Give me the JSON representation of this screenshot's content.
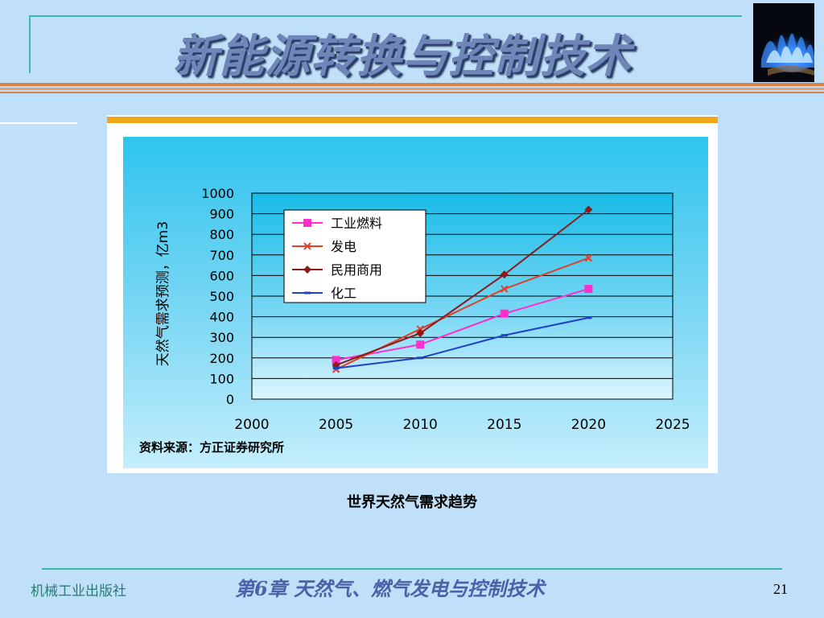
{
  "slide": {
    "title": "新能源转换与控制技术",
    "caption": "世界天然气需求趋势",
    "footer": {
      "publisher": "机械工业出版社",
      "chapter": "第6章  天然气、燃气发电与控制技术",
      "page_number": "21"
    }
  },
  "colors": {
    "background": "#bfe0f8",
    "title_fill": "#6f86b8",
    "title_shadow": "#2a3f6e",
    "accent_teal": "#3cb8a8",
    "accent_orange": "#d8814a",
    "chart_top_bar": "#f0a818"
  },
  "chart_data": {
    "type": "line",
    "ylabel": "天然气需求预测，亿m3",
    "source_note": "资料来源：方正证券研究所",
    "x_ticks": [
      "2000",
      "2005",
      "2010",
      "2015",
      "2020",
      "2025"
    ],
    "y_ticks": [
      "0",
      "100",
      "200",
      "300",
      "400",
      "500",
      "600",
      "700",
      "800",
      "900",
      "1000"
    ],
    "xlim": [
      2000,
      2025
    ],
    "ylim": [
      0,
      1000
    ],
    "grid": "horizontal",
    "legend_position": "top-left",
    "series": [
      {
        "name": "工业燃料",
        "color": "#ff2fcf",
        "marker": "square",
        "x": [
          2005,
          2010,
          2015,
          2020
        ],
        "y": [
          190,
          265,
          415,
          535
        ]
      },
      {
        "name": "发电",
        "color": "#e0402a",
        "marker": "x",
        "x": [
          2005,
          2010,
          2015,
          2020
        ],
        "y": [
          145,
          340,
          535,
          685
        ]
      },
      {
        "name": "民用商用",
        "color": "#8b1a1a",
        "marker": "diamond",
        "x": [
          2005,
          2010,
          2015,
          2020
        ],
        "y": [
          165,
          320,
          605,
          920
        ]
      },
      {
        "name": "化工",
        "color": "#2040c8",
        "marker": "dash",
        "x": [
          2005,
          2010,
          2015,
          2020
        ],
        "y": [
          150,
          200,
          310,
          395
        ]
      }
    ]
  }
}
